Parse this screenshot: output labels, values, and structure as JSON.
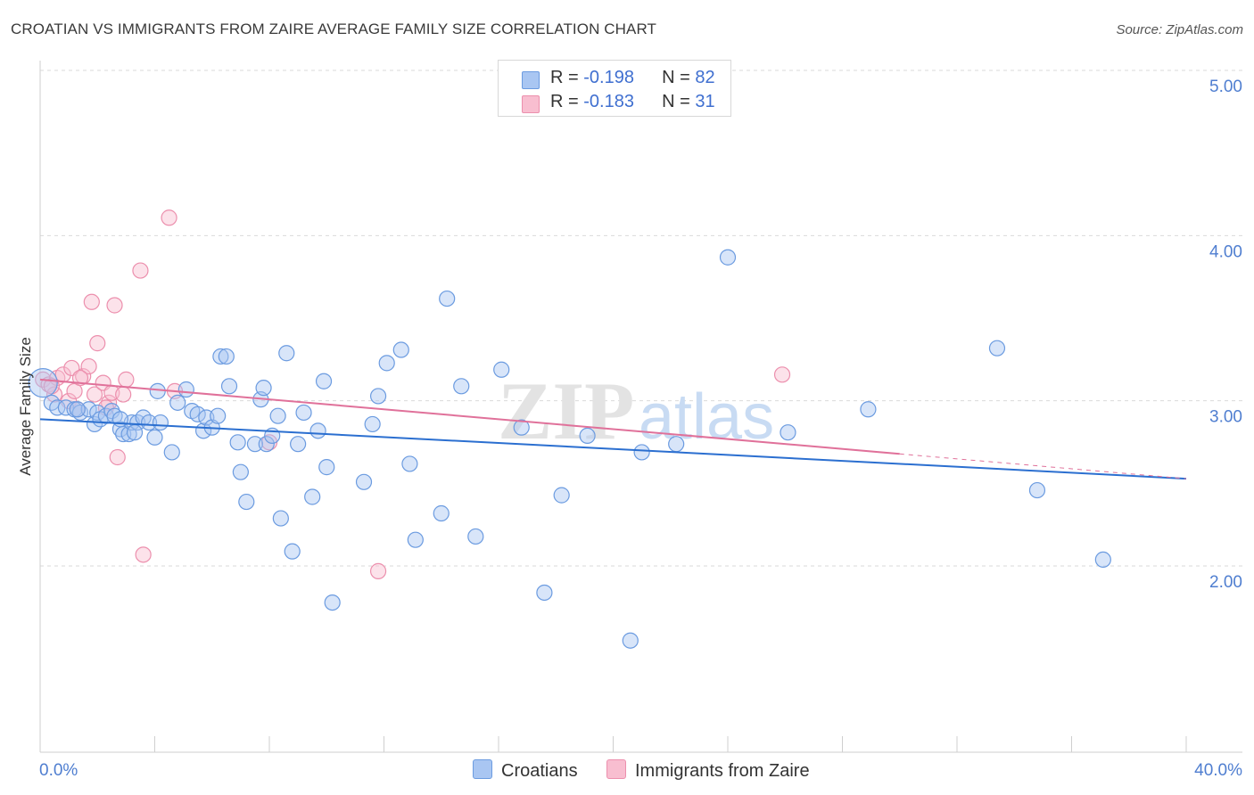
{
  "header": {
    "title": "CROATIAN VS IMMIGRANTS FROM ZAIRE AVERAGE FAMILY SIZE CORRELATION CHART",
    "source": "Source: ZipAtlas.com"
  },
  "legend": {
    "rows": [
      {
        "r_label": "R = ",
        "r_value": "-0.198",
        "n_label": "N = ",
        "n_value": "82"
      },
      {
        "r_label": "R = ",
        "r_value": "-0.183",
        "n_label": "N = ",
        "n_value": "31"
      }
    ]
  },
  "watermark": {
    "zip": "ZIP",
    "atlas": "atlas"
  },
  "colors": {
    "blue_fill": "#a9c6f2",
    "blue_stroke": "#6b9be0",
    "blue_line": "#2b6fd0",
    "pink_fill": "#f8bed0",
    "pink_stroke": "#ec8fad",
    "pink_line": "#e0719a",
    "tick_text": "#4f7ed0",
    "grid": "#d9d9d9"
  },
  "chart_data": {
    "type": "scatter",
    "title": "CROATIAN VS IMMIGRANTS FROM ZAIRE AVERAGE FAMILY SIZE CORRELATION CHART",
    "xlabel": "",
    "ylabel": "Average Family Size",
    "xlim": [
      0,
      40
    ],
    "ylim": [
      1.0,
      5.1
    ],
    "x_tick_labels": [
      "0.0%",
      "40.0%"
    ],
    "y_ticks": [
      2.0,
      3.0,
      4.0,
      5.0
    ],
    "y_tick_labels": [
      "2.00",
      "3.00",
      "4.00",
      "5.00"
    ],
    "grid": "horizontal-dashed",
    "legend_placement": "top-center and bottom",
    "series": [
      {
        "name": "Croatians",
        "r": -0.198,
        "n": 82,
        "trend": {
          "x": [
            0,
            40
          ],
          "y": [
            2.98,
            2.62
          ]
        },
        "points": [
          [
            0.1,
            3.2
          ],
          [
            0.4,
            3.08
          ],
          [
            0.6,
            3.05
          ],
          [
            0.9,
            3.05
          ],
          [
            1.2,
            3.04
          ],
          [
            1.4,
            3.02
          ],
          [
            1.7,
            3.04
          ],
          [
            1.9,
            2.95
          ],
          [
            2.0,
            3.02
          ],
          [
            2.1,
            2.98
          ],
          [
            2.3,
            3.0
          ],
          [
            2.5,
            3.03
          ],
          [
            2.6,
            3.0
          ],
          [
            2.8,
            2.92
          ],
          [
            2.9,
            2.89
          ],
          [
            3.1,
            2.89
          ],
          [
            3.2,
            2.96
          ],
          [
            3.4,
            2.96
          ],
          [
            3.6,
            2.99
          ],
          [
            3.8,
            2.96
          ],
          [
            4.0,
            2.87
          ],
          [
            4.1,
            3.15
          ],
          [
            4.2,
            2.96
          ],
          [
            4.6,
            2.78
          ],
          [
            4.8,
            3.08
          ],
          [
            5.1,
            3.16
          ],
          [
            5.3,
            3.03
          ],
          [
            5.5,
            3.01
          ],
          [
            5.7,
            2.91
          ],
          [
            5.8,
            2.99
          ],
          [
            6.0,
            2.93
          ],
          [
            6.3,
            3.36
          ],
          [
            6.5,
            3.36
          ],
          [
            6.6,
            3.18
          ],
          [
            6.9,
            2.84
          ],
          [
            7.0,
            2.66
          ],
          [
            7.2,
            2.48
          ],
          [
            7.5,
            2.83
          ],
          [
            7.7,
            3.1
          ],
          [
            7.8,
            3.17
          ],
          [
            7.9,
            2.83
          ],
          [
            8.1,
            2.88
          ],
          [
            8.3,
            3.0
          ],
          [
            8.4,
            2.38
          ],
          [
            8.6,
            3.38
          ],
          [
            8.8,
            2.18
          ],
          [
            9.0,
            2.83
          ],
          [
            9.2,
            3.02
          ],
          [
            9.5,
            2.51
          ],
          [
            9.7,
            2.91
          ],
          [
            9.9,
            3.21
          ],
          [
            10.0,
            2.69
          ],
          [
            10.2,
            1.87
          ],
          [
            11.3,
            2.6
          ],
          [
            11.6,
            2.95
          ],
          [
            11.8,
            3.12
          ],
          [
            12.1,
            3.32
          ],
          [
            12.6,
            3.4
          ],
          [
            12.9,
            2.71
          ],
          [
            13.1,
            2.25
          ],
          [
            14.0,
            2.41
          ],
          [
            14.2,
            3.71
          ],
          [
            14.7,
            3.18
          ],
          [
            15.2,
            2.27
          ],
          [
            16.1,
            3.28
          ],
          [
            16.8,
            2.93
          ],
          [
            17.6,
            1.93
          ],
          [
            18.2,
            2.52
          ],
          [
            20.6,
            1.64
          ],
          [
            21.0,
            2.78
          ],
          [
            22.2,
            2.83
          ],
          [
            24.0,
            3.96
          ],
          [
            26.1,
            2.9
          ],
          [
            28.9,
            3.04
          ],
          [
            33.4,
            3.41
          ],
          [
            34.8,
            2.55
          ],
          [
            37.1,
            2.13
          ],
          [
            2.8,
            2.98
          ],
          [
            1.3,
            3.04
          ],
          [
            6.2,
            3.0
          ],
          [
            3.3,
            2.9
          ],
          [
            19.1,
            2.88
          ]
        ]
      },
      {
        "name": "Immigrants from Zaire",
        "r": -0.183,
        "n": 31,
        "trend": {
          "x": [
            0,
            30
          ],
          "y": [
            3.22,
            2.77
          ]
        },
        "trend_extension": {
          "x": [
            30,
            40
          ],
          "y": [
            2.77,
            2.62
          ]
        },
        "points": [
          [
            0.1,
            3.22
          ],
          [
            0.3,
            3.19
          ],
          [
            0.5,
            3.13
          ],
          [
            0.6,
            3.23
          ],
          [
            0.8,
            3.25
          ],
          [
            1.0,
            3.09
          ],
          [
            1.1,
            3.29
          ],
          [
            1.2,
            3.15
          ],
          [
            1.3,
            3.04
          ],
          [
            1.5,
            3.24
          ],
          [
            1.7,
            3.3
          ],
          [
            1.8,
            3.69
          ],
          [
            1.9,
            3.13
          ],
          [
            2.0,
            3.44
          ],
          [
            2.2,
            3.2
          ],
          [
            2.4,
            3.08
          ],
          [
            2.5,
            3.14
          ],
          [
            2.6,
            3.67
          ],
          [
            2.7,
            2.75
          ],
          [
            2.9,
            3.13
          ],
          [
            3.0,
            3.22
          ],
          [
            3.5,
            3.88
          ],
          [
            3.6,
            2.16
          ],
          [
            4.5,
            4.2
          ],
          [
            4.7,
            3.15
          ],
          [
            8.0,
            2.84
          ],
          [
            11.8,
            2.06
          ],
          [
            25.9,
            3.25
          ],
          [
            0.4,
            3.18
          ],
          [
            2.3,
            3.05
          ],
          [
            1.4,
            3.23
          ]
        ]
      }
    ]
  },
  "bottom_legend": [
    {
      "label": "Croatians"
    },
    {
      "label": "Immigrants from Zaire"
    }
  ]
}
